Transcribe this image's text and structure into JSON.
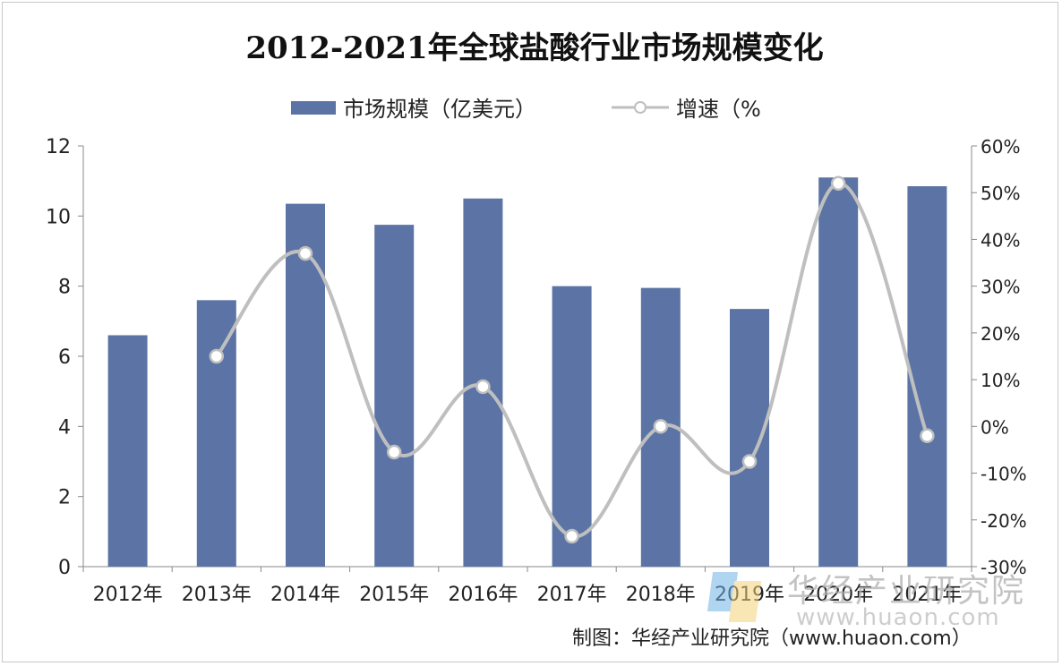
{
  "chart_data": {
    "type": "bar+line",
    "title": "2012-2021年全球盐酸行业市场规模变化",
    "categories": [
      "2012年",
      "2013年",
      "2014年",
      "2015年",
      "2016年",
      "2017年",
      "2018年",
      "2019年",
      "2020年",
      "2021年"
    ],
    "series": [
      {
        "name": "市场规模（亿美元）",
        "type": "bar",
        "axis": "left",
        "color": "#5b74a5",
        "values": [
          6.6,
          7.6,
          10.35,
          9.75,
          10.5,
          8.0,
          7.95,
          7.35,
          11.1,
          10.85
        ]
      },
      {
        "name": "增速（%",
        "type": "line",
        "axis": "right",
        "color": "#bfbfbf",
        "values": [
          null,
          15,
          37,
          -5.5,
          8.5,
          -23.5,
          0,
          -7.5,
          52,
          -2
        ]
      }
    ],
    "y_left": {
      "min": 0,
      "max": 12,
      "ticks": [
        "0",
        "2",
        "4",
        "6",
        "8",
        "10",
        "12"
      ],
      "tick_values": [
        0,
        2,
        4,
        6,
        8,
        10,
        12
      ]
    },
    "y_right": {
      "min": -30,
      "max": 60,
      "ticks": [
        "-30%",
        "-20%",
        "-10%",
        "0%",
        "10%",
        "20%",
        "30%",
        "40%",
        "50%",
        "60%"
      ],
      "tick_values": [
        -30,
        -20,
        -10,
        0,
        10,
        20,
        30,
        40,
        50,
        60
      ]
    },
    "legend_position": "top-center",
    "grid": false
  },
  "watermark": {
    "name": "华经产业研究院",
    "domain": "www.huaon.com"
  },
  "source": "制图：华经产业研究院（www.huaon.com）"
}
